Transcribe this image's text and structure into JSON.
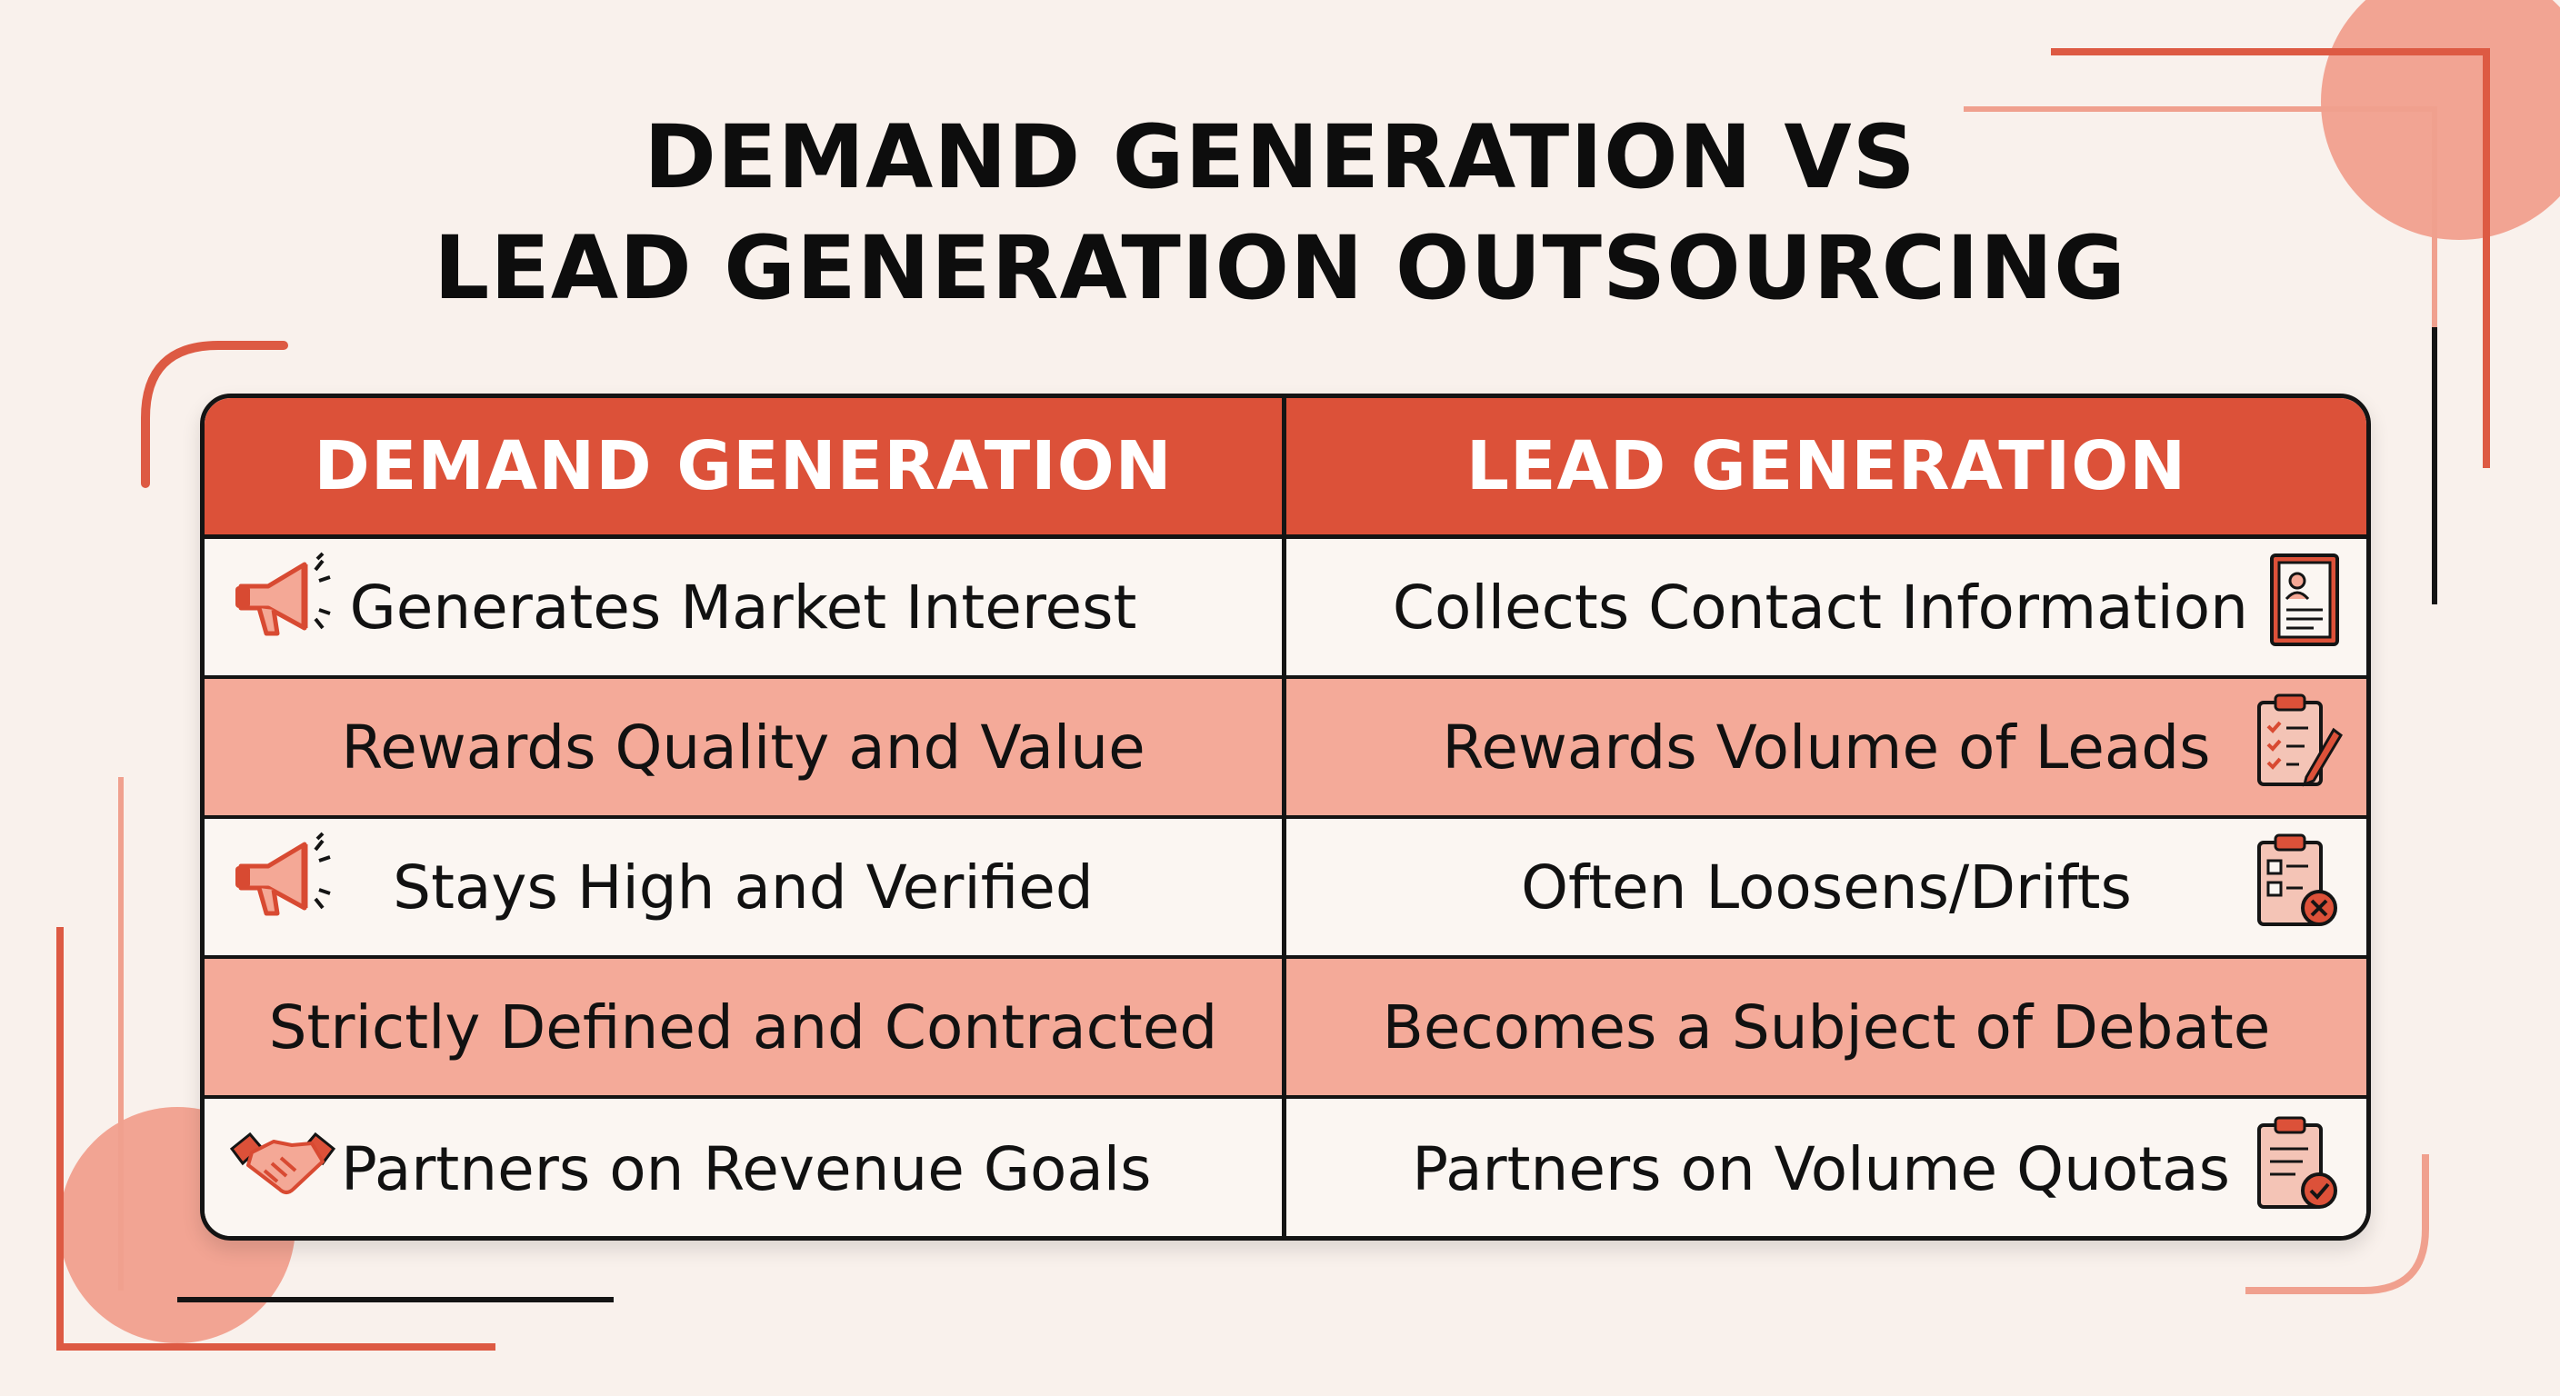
{
  "title": {
    "line1": "DEMAND GENERATION VS",
    "line2": "LEAD GENERATION OUTSOURCING"
  },
  "table": {
    "headers": [
      "DEMAND GENERATION",
      "LEAD GENERATION"
    ],
    "rows": [
      {
        "left": "Generates Market Interest",
        "right": "Collects Contact Information",
        "left_icon": "megaphone-icon",
        "right_icon": "contact-form-icon"
      },
      {
        "left": "Rewards Quality and Value",
        "right": "Rewards Volume of Leads",
        "left_icon": "",
        "right_icon": "clipboard-pencil-icon"
      },
      {
        "left": "Stays High and Verified",
        "right": "Often Loosens/Drifts",
        "left_icon": "megaphone-icon",
        "right_icon": "clipboard-x-icon"
      },
      {
        "left": "Strictly Defined and Contracted",
        "right": "Becomes a Subject of Debate",
        "left_icon": "",
        "right_icon": ""
      },
      {
        "left": "Partners on Revenue Goals",
        "right": "Partners on Volume Quotas",
        "left_icon": "handshake-icon",
        "right_icon": "clipboard-check-icon"
      }
    ]
  },
  "colors": {
    "accent": "#dc5139",
    "row_alt": "#f4aa99",
    "background": "#f9f1ec",
    "text": "#111111"
  }
}
